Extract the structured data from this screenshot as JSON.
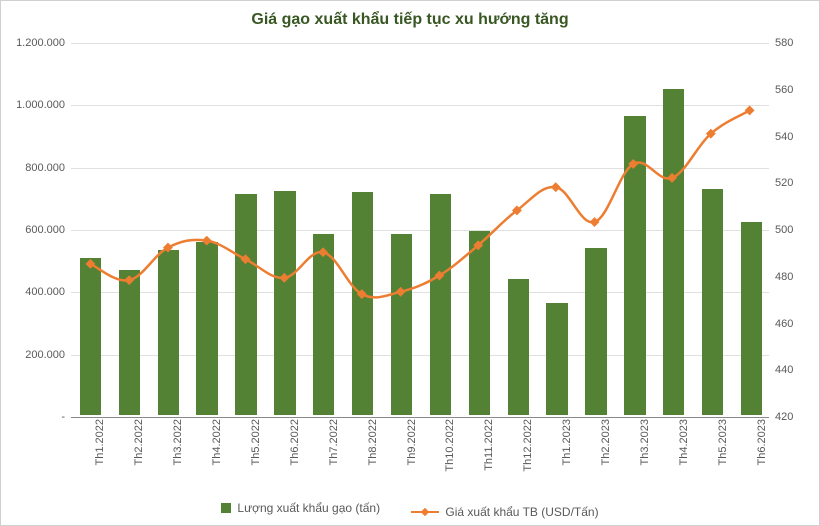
{
  "chart": {
    "type": "bar+line",
    "title": "Giá gạo xuất khẩu tiếp tục xu hướng tăng",
    "title_color": "#385723",
    "title_fontsize": 16,
    "background_color": "#ffffff",
    "grid_color": "#e0e0e0",
    "axis_line_color": "#888888",
    "label_color": "#595959",
    "label_fontsize": 11,
    "categories": [
      "Th1.2022",
      "Th2.2022",
      "Th3.2022",
      "Th4.2022",
      "Th5.2022",
      "Th6.2022",
      "Th7.2022",
      "Th8.2022",
      "Th9.2022",
      "Th10.2022",
      "Th11.2022",
      "Th12.2022",
      "Th1.2023",
      "Th2.2023",
      "Th3.2023",
      "Th4.2023",
      "Th5.2023",
      "Th6.2023"
    ],
    "bar_series": {
      "name": "Lượng xuất khẩu gạo (tấn)",
      "color": "#548235",
      "values": [
        505000,
        465000,
        530000,
        555000,
        710000,
        720000,
        580000,
        715000,
        580000,
        710000,
        590000,
        435000,
        360000,
        535000,
        960000,
        1045000,
        725000,
        620000
      ],
      "bar_width_ratio": 0.55,
      "y_axis": "left"
    },
    "line_series": {
      "name": "Giá xuất khẩu TB (USD/Tấn)",
      "color": "#ed7d31",
      "line_width": 2.5,
      "marker": "diamond",
      "marker_size": 7,
      "values": [
        485,
        478,
        492,
        495,
        487,
        479,
        490,
        472,
        473,
        480,
        493,
        508,
        518,
        503,
        528,
        522,
        541,
        551
      ],
      "y_axis": "right"
    },
    "y_left": {
      "min": 0,
      "max": 1200000,
      "tick_step": 200000,
      "tick_labels": [
        "-",
        "200.000",
        "400.000",
        "600.000",
        "800.000",
        "1.000.000",
        "1.200.000"
      ]
    },
    "y_right": {
      "min": 420,
      "max": 580,
      "tick_step": 20,
      "tick_labels": [
        "420",
        "440",
        "460",
        "480",
        "500",
        "520",
        "540",
        "560",
        "580"
      ]
    },
    "legend": {
      "position": "bottom"
    }
  }
}
